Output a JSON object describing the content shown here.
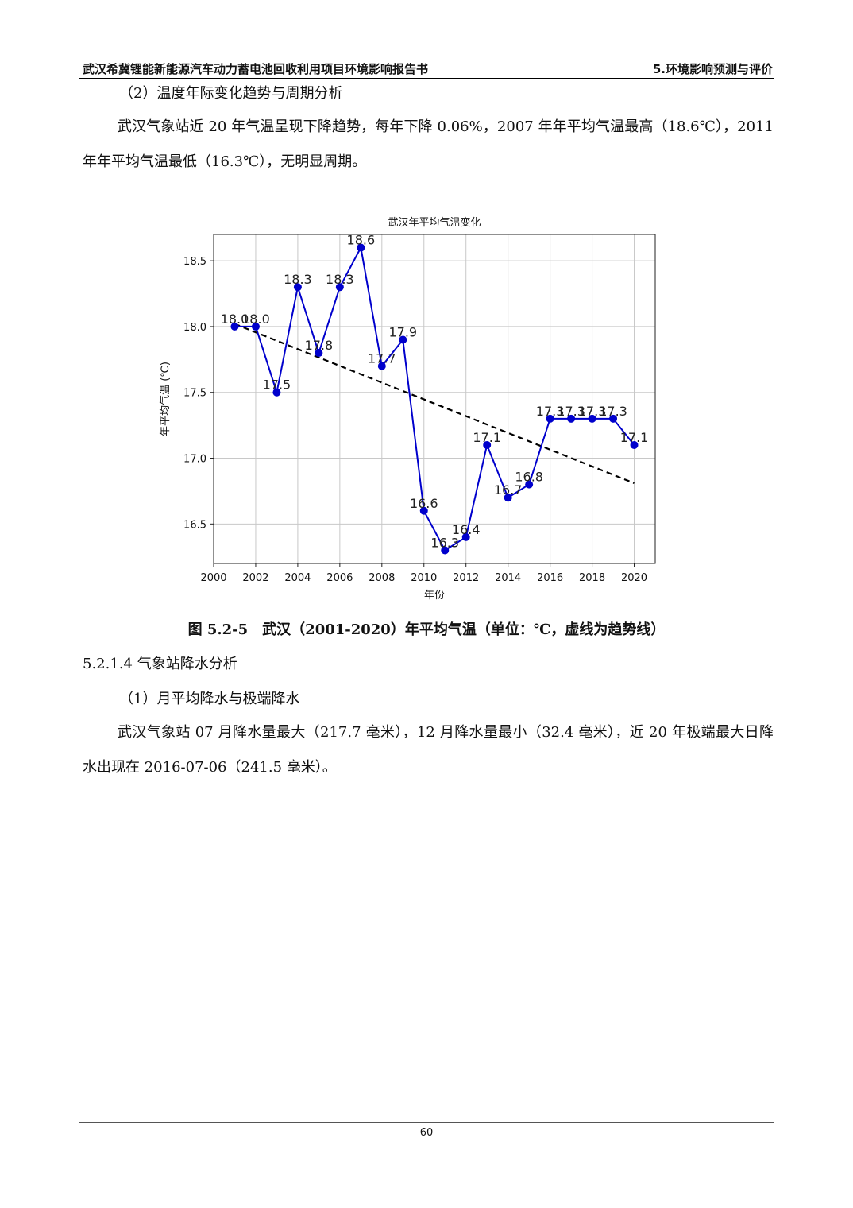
{
  "header": {
    "left": "武汉希冀锂能新能源汽车动力蓄电池回收利用项目环境影响报告书",
    "right": "5.环境影响预测与评价"
  },
  "section_temp": {
    "subheading": "（2）温度年际变化趋势与周期分析",
    "paragraph": "武汉气象站近 20 年气温呈现下降趋势，每年下降 0.06%，2007 年年平均气温最高（18.6℃），2011 年年平均气温最低（16.3℃），无明显周期。"
  },
  "figure": {
    "caption": "图 5.2-5　武汉（2001-2020）年平均气温（单位：℃，虚线为趋势线）"
  },
  "section_precip": {
    "heading": "5.2.1.4 气象站降水分析",
    "subheading": "（1）月平均降水与极端降水",
    "paragraph": "武汉气象站 07 月降水量最大（217.7 毫米），12 月降水量最小（32.4 毫米），近 20 年极端最大日降水出现在 2016-07-06（241.5 毫米）。"
  },
  "footer": {
    "page_number": "60"
  },
  "chart_data": {
    "type": "line",
    "title": "武汉年平均气温变化",
    "xlabel": "年份",
    "ylabel": "年平均气温 (℃)",
    "x": [
      2001,
      2002,
      2003,
      2004,
      2005,
      2006,
      2007,
      2008,
      2009,
      2010,
      2011,
      2012,
      2013,
      2014,
      2015,
      2016,
      2017,
      2018,
      2019,
      2020
    ],
    "series": [
      {
        "values": [
          18.0,
          18.0,
          17.5,
          18.3,
          17.8,
          18.3,
          18.6,
          17.7,
          17.9,
          16.6,
          16.3,
          16.4,
          17.1,
          16.7,
          16.8,
          17.3,
          17.3,
          17.3,
          17.3,
          17.1
        ],
        "color": "#0000cc",
        "data_labels": true
      }
    ],
    "trend_line": {
      "x": [
        2001,
        2020
      ],
      "y": [
        18.02,
        16.81
      ],
      "style": "dashed",
      "color": "#000000"
    },
    "xlim": [
      2000,
      2021
    ],
    "ylim": [
      16.2,
      18.7
    ],
    "xticks": [
      2000,
      2002,
      2004,
      2006,
      2008,
      2010,
      2012,
      2014,
      2016,
      2018,
      2020
    ],
    "yticks": [
      16.5,
      17.0,
      17.5,
      18.0,
      18.5
    ],
    "grid": true
  }
}
